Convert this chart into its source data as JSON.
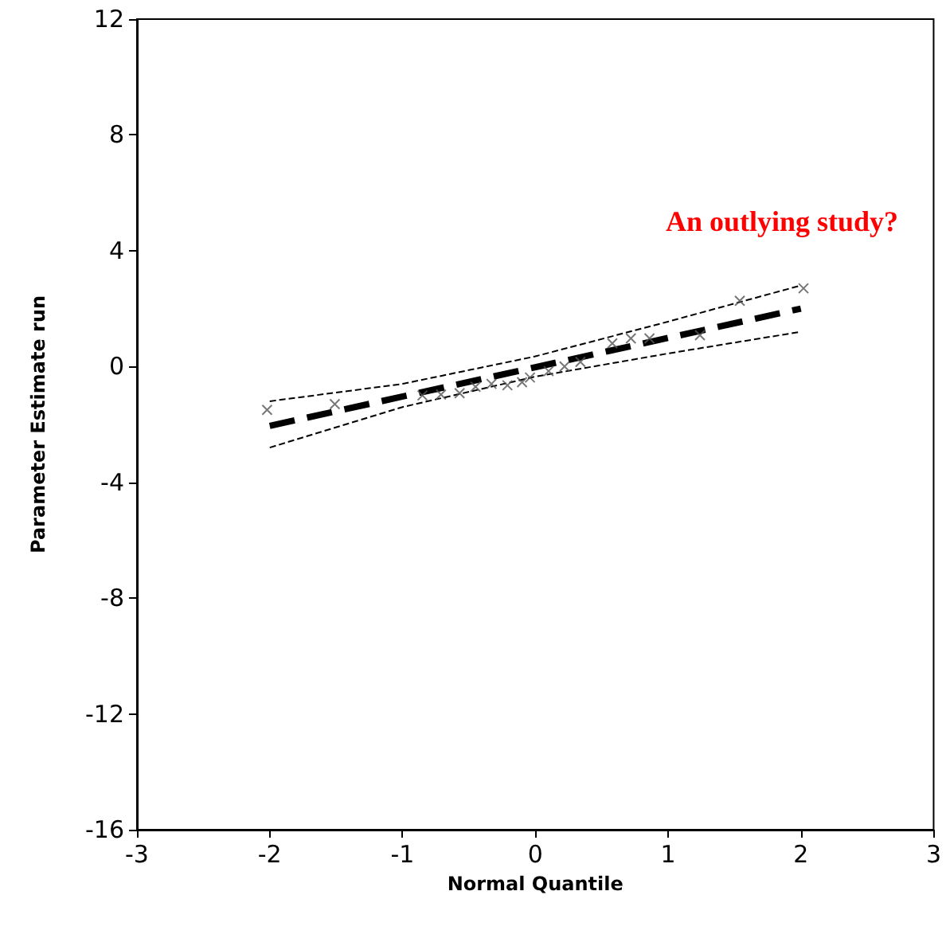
{
  "chart_data": {
    "type": "scatter",
    "xlabel": "Normal Quantile",
    "ylabel": "Parameter Estimate run",
    "xlim": [
      -3,
      3
    ],
    "xticks": [
      -3,
      -2,
      -1,
      0,
      1,
      2,
      3
    ],
    "ylim": [
      -16,
      12
    ],
    "yticks": [
      -16,
      -12,
      -8,
      -4,
      0,
      4,
      8,
      12
    ],
    "annotations": [
      "An outlying study?"
    ],
    "series": [
      {
        "marker": "cross",
        "color": "#555555",
        "x": [
          -2.02,
          -1.51,
          -0.85,
          -0.71,
          -0.57,
          -0.45,
          -0.33,
          -0.21,
          -0.1,
          -0.04,
          0.1,
          0.22,
          0.34,
          0.58,
          0.72,
          0.86,
          1.24,
          1.54,
          2.02
        ],
        "values": [
          -1.5,
          -1.3,
          -1.0,
          -0.97,
          -0.92,
          -0.7,
          -0.6,
          -0.65,
          -0.54,
          -0.38,
          -0.16,
          0,
          0.16,
          0.8,
          0.97,
          0.97,
          1.08,
          2.27,
          2.7
        ]
      },
      {
        "type": "line",
        "marker": "none",
        "line_style": "dashed",
        "color": "#000000",
        "x": [
          -2,
          2
        ],
        "values": [
          -2.05,
          2.0
        ]
      },
      {
        "type": "line",
        "marker": "none",
        "line_style": "dashed",
        "color": "#000000",
        "x": [
          -2,
          -1,
          0,
          1,
          2
        ],
        "values": [
          -1.2,
          -0.6,
          0.35,
          1.55,
          2.8
        ]
      },
      {
        "type": "line",
        "marker": "none",
        "line_style": "dashed",
        "color": "#000000",
        "x": [
          -2,
          -1,
          0,
          1,
          2
        ],
        "values": [
          -2.8,
          -1.4,
          -0.35,
          0.45,
          1.2
        ]
      }
    ]
  }
}
